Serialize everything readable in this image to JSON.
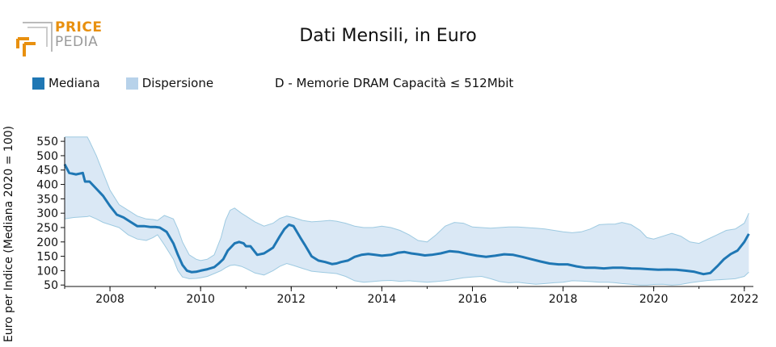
{
  "logo": {
    "line1": "PRICE",
    "line2": "PEDIA",
    "accent": "#e8900f",
    "gray": "#9a9a9a"
  },
  "colors": {
    "median": "#1f77b4",
    "band_fill": "#c6dbef",
    "band_stroke": "#9ecae1",
    "text": "#111111"
  },
  "chart_data": {
    "type": "area",
    "title": "Dati Mensili, in Euro",
    "subtitle": "D - Memorie DRAM Capacità ≤ 512Mbit",
    "ylabel": "Euro per Indice (Mediana 2020 = 100)",
    "xlabel": "",
    "xlim": [
      2007.0,
      2022.2
    ],
    "ylim": [
      45,
      570
    ],
    "yticks": [
      50,
      100,
      150,
      200,
      250,
      300,
      350,
      400,
      450,
      500,
      550
    ],
    "xticks": [
      2008,
      2010,
      2012,
      2014,
      2016,
      2018,
      2020,
      2022
    ],
    "legend": {
      "placement": "top-left",
      "entries": [
        "Mediana",
        "Dispersione"
      ]
    },
    "series": [
      {
        "name": "Mediana",
        "x": [
          2007.0,
          2007.1,
          2007.25,
          2007.4,
          2007.45,
          2007.55,
          2007.7,
          2007.85,
          2008.0,
          2008.15,
          2008.3,
          2008.45,
          2008.6,
          2008.75,
          2008.9,
          2009.0,
          2009.1,
          2009.25,
          2009.4,
          2009.5,
          2009.6,
          2009.7,
          2009.8,
          2009.9,
          2010.0,
          2010.15,
          2010.3,
          2010.4,
          2010.5,
          2010.6,
          2010.75,
          2010.85,
          2010.95,
          2011.0,
          2011.1,
          2011.25,
          2011.4,
          2011.5,
          2011.6,
          2011.75,
          2011.85,
          2011.95,
          2012.05,
          2012.2,
          2012.3,
          2012.45,
          2012.6,
          2012.75,
          2012.9,
          2013.0,
          2013.1,
          2013.25,
          2013.4,
          2013.55,
          2013.7,
          2013.85,
          2014.0,
          2014.2,
          2014.35,
          2014.5,
          2014.65,
          2014.8,
          2014.95,
          2015.1,
          2015.3,
          2015.5,
          2015.7,
          2015.9,
          2016.1,
          2016.3,
          2016.5,
          2016.7,
          2016.9,
          2017.1,
          2017.3,
          2017.5,
          2017.7,
          2017.9,
          2018.1,
          2018.3,
          2018.5,
          2018.7,
          2018.9,
          2019.1,
          2019.3,
          2019.5,
          2019.7,
          2019.9,
          2020.1,
          2020.3,
          2020.5,
          2020.7,
          2020.9,
          2021.0,
          2021.1,
          2021.25,
          2021.4,
          2021.55,
          2021.7,
          2021.85,
          2022.0,
          2022.1
        ],
        "y": [
          470,
          440,
          435,
          440,
          410,
          410,
          385,
          360,
          325,
          295,
          285,
          270,
          255,
          255,
          252,
          252,
          250,
          235,
          195,
          155,
          120,
          100,
          95,
          96,
          100,
          105,
          112,
          125,
          140,
          170,
          195,
          200,
          195,
          185,
          185,
          155,
          160,
          170,
          180,
          220,
          245,
          260,
          255,
          215,
          190,
          150,
          135,
          130,
          123,
          125,
          130,
          135,
          148,
          155,
          158,
          155,
          152,
          155,
          162,
          165,
          160,
          157,
          153,
          155,
          160,
          168,
          165,
          158,
          152,
          148,
          152,
          157,
          155,
          148,
          140,
          132,
          125,
          122,
          122,
          115,
          110,
          110,
          108,
          110,
          110,
          108,
          107,
          105,
          103,
          104,
          103,
          100,
          96,
          92,
          88,
          92,
          115,
          140,
          158,
          170,
          200,
          228
        ]
      },
      {
        "name": "Dispersione",
        "x": [
          2007.0,
          2007.2,
          2007.5,
          2007.55,
          2007.7,
          2007.85,
          2008.0,
          2008.2,
          2008.4,
          2008.6,
          2008.8,
          2008.95,
          2009.05,
          2009.2,
          2009.4,
          2009.5,
          2009.6,
          2009.75,
          2009.9,
          2010.0,
          2010.15,
          2010.3,
          2010.45,
          2010.55,
          2010.65,
          2010.75,
          2010.9,
          2011.0,
          2011.2,
          2011.4,
          2011.6,
          2011.75,
          2011.9,
          2012.05,
          2012.25,
          2012.45,
          2012.65,
          2012.85,
          2013.0,
          2013.2,
          2013.4,
          2013.6,
          2013.8,
          2014.0,
          2014.2,
          2014.4,
          2014.6,
          2014.8,
          2015.0,
          2015.2,
          2015.4,
          2015.6,
          2015.8,
          2016.0,
          2016.2,
          2016.4,
          2016.6,
          2016.8,
          2017.0,
          2017.2,
          2017.4,
          2017.6,
          2017.8,
          2018.0,
          2018.2,
          2018.4,
          2018.6,
          2018.8,
          2019.0,
          2019.15,
          2019.3,
          2019.5,
          2019.7,
          2019.85,
          2020.0,
          2020.2,
          2020.4,
          2020.6,
          2020.8,
          2021.0,
          2021.2,
          2021.4,
          2021.6,
          2021.8,
          2022.0,
          2022.1
        ],
        "upper": [
          565,
          565,
          565,
          550,
          500,
          440,
          380,
          330,
          310,
          290,
          280,
          278,
          275,
          292,
          280,
          245,
          200,
          155,
          140,
          135,
          140,
          155,
          215,
          275,
          310,
          318,
          300,
          290,
          270,
          255,
          265,
          282,
          290,
          285,
          275,
          270,
          272,
          275,
          272,
          265,
          255,
          250,
          250,
          255,
          250,
          240,
          225,
          205,
          200,
          225,
          255,
          268,
          265,
          252,
          250,
          248,
          250,
          252,
          252,
          250,
          248,
          245,
          240,
          235,
          232,
          235,
          245,
          260,
          262,
          262,
          268,
          260,
          240,
          215,
          210,
          220,
          230,
          220,
          200,
          195,
          210,
          225,
          240,
          245,
          265,
          300
        ],
        "lower": [
          280,
          285,
          288,
          290,
          280,
          268,
          260,
          250,
          225,
          210,
          205,
          215,
          225,
          190,
          140,
          100,
          78,
          72,
          73,
          75,
          80,
          90,
          100,
          110,
          118,
          120,
          115,
          108,
          92,
          85,
          100,
          115,
          125,
          118,
          108,
          98,
          95,
          92,
          90,
          80,
          65,
          60,
          62,
          65,
          66,
          63,
          65,
          62,
          60,
          62,
          65,
          70,
          75,
          78,
          80,
          72,
          62,
          58,
          60,
          56,
          53,
          55,
          58,
          60,
          65,
          64,
          62,
          60,
          60,
          58,
          55,
          53,
          50,
          50,
          52,
          53,
          50,
          52,
          58,
          62,
          66,
          68,
          70,
          72,
          80,
          95
        ]
      }
    ]
  }
}
